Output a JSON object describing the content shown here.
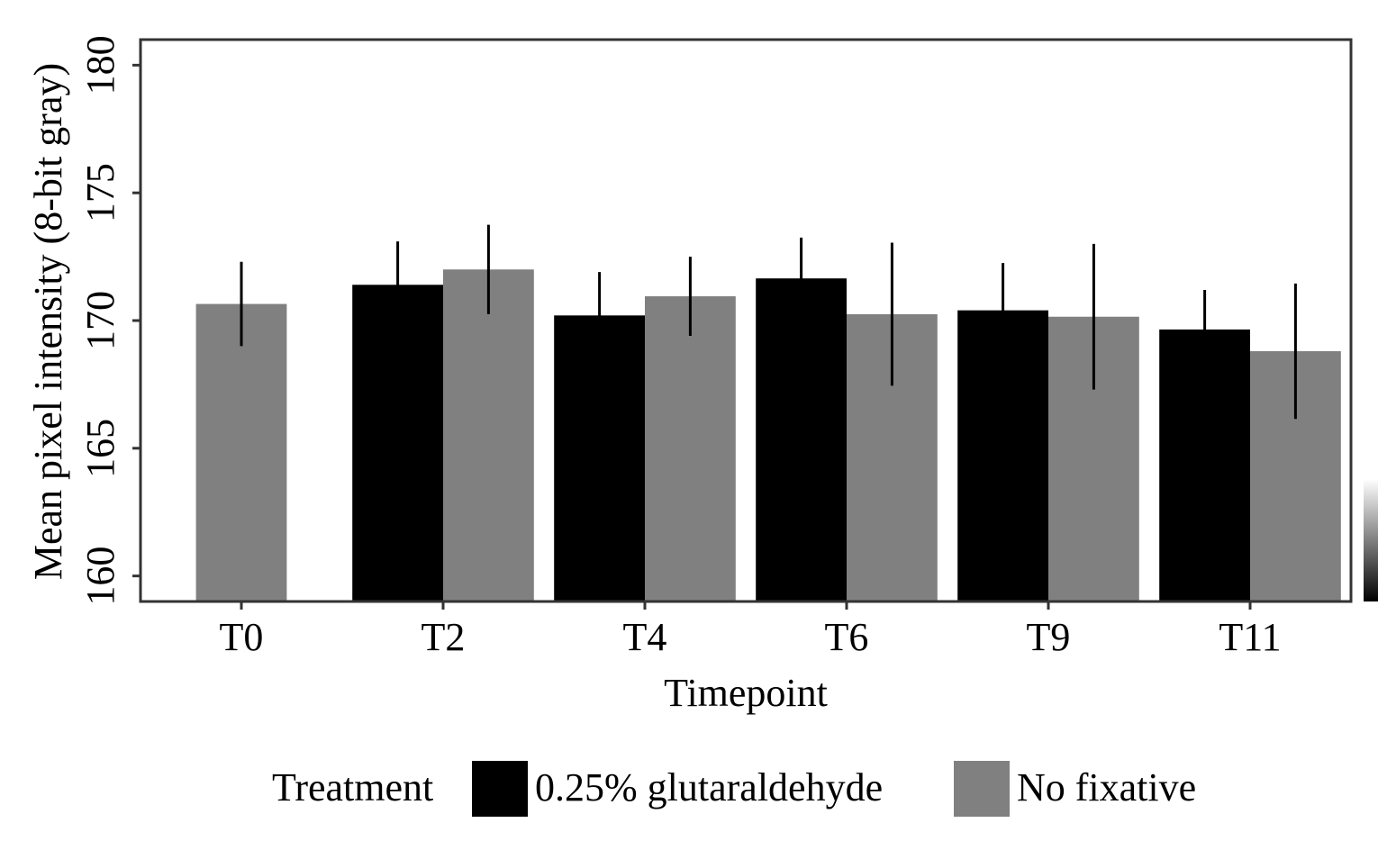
{
  "chart_data": {
    "type": "bar",
    "title": "",
    "xlabel": "Timepoint",
    "ylabel": "Mean pixel intensity (8-bit gray)",
    "ylim": [
      159,
      181
    ],
    "yticks": [
      160,
      165,
      170,
      175,
      180
    ],
    "categories": [
      "T0",
      "T2",
      "T4",
      "T6",
      "T9",
      "T11"
    ],
    "grid": false,
    "legend_position": "bottom",
    "legend_title": "Treatment",
    "series": [
      {
        "name": "0.25% glutaraldehyde",
        "color": "#000000",
        "values": [
          null,
          171.4,
          170.2,
          171.65,
          170.4,
          169.65
        ],
        "error": [
          null,
          1.7,
          1.7,
          1.6,
          1.85,
          1.55
        ]
      },
      {
        "name": "No fixative",
        "color": "#808080",
        "values": [
          170.65,
          172.0,
          170.95,
          170.25,
          170.15,
          168.8
        ],
        "error": [
          1.65,
          1.75,
          1.55,
          2.8,
          2.85,
          2.65
        ]
      }
    ]
  }
}
